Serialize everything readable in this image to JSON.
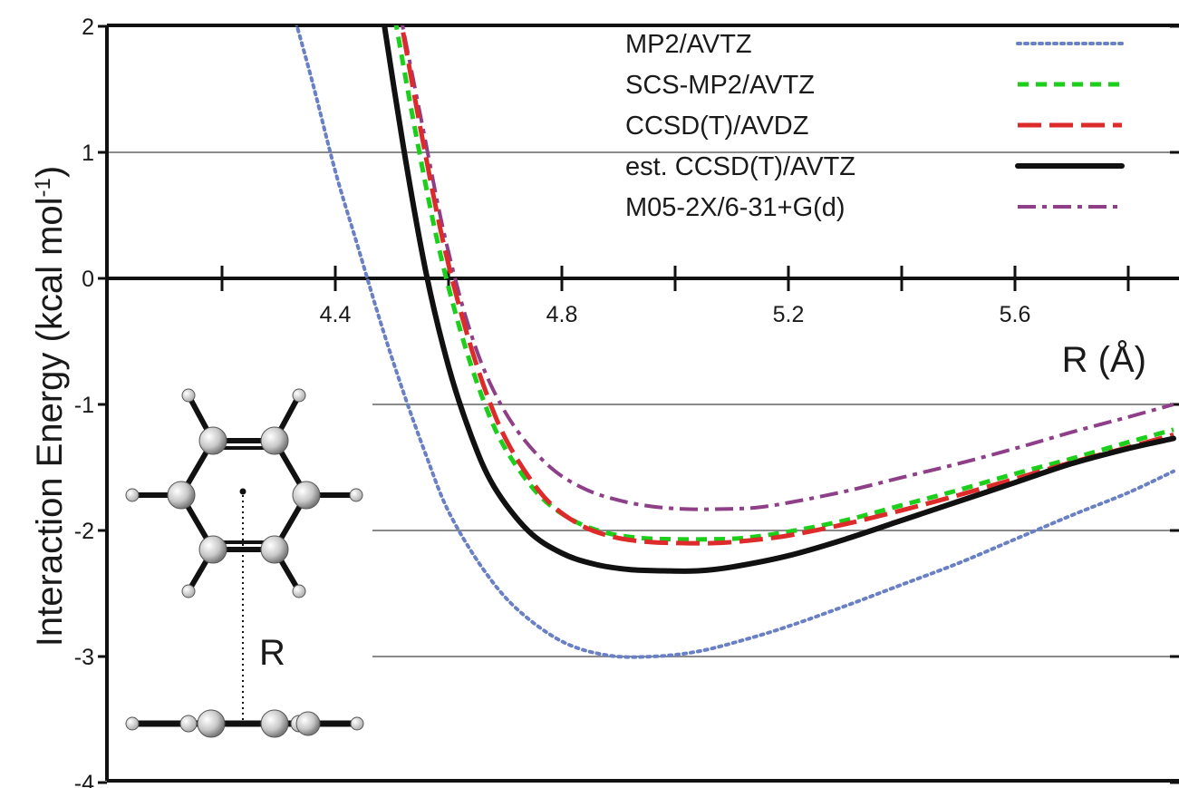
{
  "chart_data": {
    "type": "line",
    "title": "",
    "xlabel": "R (Å)",
    "ylabel": "Interaction Energy (kcal mol",
    "ylabel_sup": "-1",
    "ylabel_close": ")",
    "xlim": [
      4.0,
      5.88
    ],
    "ylim": [
      -4,
      2
    ],
    "x_ticks": [
      4.4,
      4.8,
      5.2,
      5.6
    ],
    "x_tick_labels": [
      "4.4",
      "4.8",
      "5.2",
      "5.6"
    ],
    "y_ticks": [
      -4,
      -3,
      -2,
      -1,
      0,
      1,
      2
    ],
    "y_tick_labels": [
      "-4",
      "-3",
      "-2",
      "-1",
      "0",
      "1",
      "2"
    ],
    "grid": true,
    "legend_position": "top-right",
    "series": [
      {
        "name": "MP2/AVTZ",
        "color": "#6a80c4",
        "style": "dotted",
        "x": [
          4.32,
          4.36,
          4.4,
          4.44,
          4.48,
          4.52,
          4.56,
          4.6,
          4.66,
          4.72,
          4.8,
          4.88,
          4.96,
          5.04,
          5.12,
          5.2,
          5.3,
          5.4,
          5.5,
          5.6,
          5.7,
          5.8,
          5.88
        ],
        "values": [
          2.2,
          1.55,
          0.85,
          0.25,
          -0.35,
          -0.9,
          -1.4,
          -1.85,
          -2.3,
          -2.62,
          -2.88,
          -2.99,
          -3.0,
          -2.96,
          -2.87,
          -2.76,
          -2.6,
          -2.43,
          -2.26,
          -2.07,
          -1.88,
          -1.7,
          -1.53
        ]
      },
      {
        "name": "SCS-MP2/AVTZ",
        "color": "#1bcf1b",
        "style": "dashed",
        "x": [
          4.5,
          4.54,
          4.58,
          4.62,
          4.66,
          4.7,
          4.76,
          4.82,
          4.88,
          4.94,
          5.0,
          5.06,
          5.12,
          5.2,
          5.3,
          5.4,
          5.5,
          5.6,
          5.7,
          5.8,
          5.88
        ],
        "values": [
          2.2,
          1.2,
          0.3,
          -0.4,
          -0.95,
          -1.35,
          -1.72,
          -1.92,
          -2.02,
          -2.06,
          -2.07,
          -2.07,
          -2.06,
          -2.01,
          -1.92,
          -1.8,
          -1.68,
          -1.55,
          -1.43,
          -1.3,
          -1.2
        ]
      },
      {
        "name": "CCSD(T)/AVDZ",
        "color": "#dd2a2a",
        "style": "long-dash",
        "x": [
          4.51,
          4.55,
          4.59,
          4.63,
          4.67,
          4.71,
          4.77,
          4.83,
          4.89,
          4.95,
          5.01,
          5.07,
          5.13,
          5.2,
          5.3,
          5.4,
          5.5,
          5.6,
          5.7,
          5.8,
          5.88
        ],
        "values": [
          2.2,
          1.2,
          0.3,
          -0.4,
          -0.95,
          -1.35,
          -1.74,
          -1.95,
          -2.05,
          -2.09,
          -2.1,
          -2.1,
          -2.08,
          -2.04,
          -1.95,
          -1.84,
          -1.72,
          -1.59,
          -1.46,
          -1.34,
          -1.24
        ]
      },
      {
        "name": "est. CCSD(T)/AVTZ",
        "color": "#111111",
        "style": "solid",
        "x": [
          4.48,
          4.52,
          4.56,
          4.6,
          4.64,
          4.68,
          4.74,
          4.8,
          4.86,
          4.92,
          4.98,
          5.04,
          5.1,
          5.2,
          5.3,
          5.4,
          5.5,
          5.6,
          5.7,
          5.8,
          5.88
        ],
        "values": [
          2.2,
          1.05,
          0.05,
          -0.7,
          -1.25,
          -1.65,
          -2.0,
          -2.18,
          -2.27,
          -2.31,
          -2.32,
          -2.32,
          -2.29,
          -2.2,
          -2.07,
          -1.92,
          -1.77,
          -1.62,
          -1.47,
          -1.35,
          -1.27
        ]
      },
      {
        "name": "M05-2X/6-31+G(d)",
        "color": "#8e3f88",
        "style": "dash-dot",
        "x": [
          4.51,
          4.55,
          4.59,
          4.63,
          4.67,
          4.72,
          4.78,
          4.84,
          4.9,
          4.96,
          5.02,
          5.08,
          5.14,
          5.2,
          5.3,
          5.4,
          5.5,
          5.6,
          5.7,
          5.8,
          5.88
        ],
        "values": [
          2.2,
          1.3,
          0.4,
          -0.3,
          -0.8,
          -1.2,
          -1.5,
          -1.67,
          -1.76,
          -1.81,
          -1.83,
          -1.83,
          -1.82,
          -1.78,
          -1.69,
          -1.58,
          -1.47,
          -1.35,
          -1.22,
          -1.1,
          -1.0
        ]
      }
    ],
    "inset_label": "R"
  }
}
